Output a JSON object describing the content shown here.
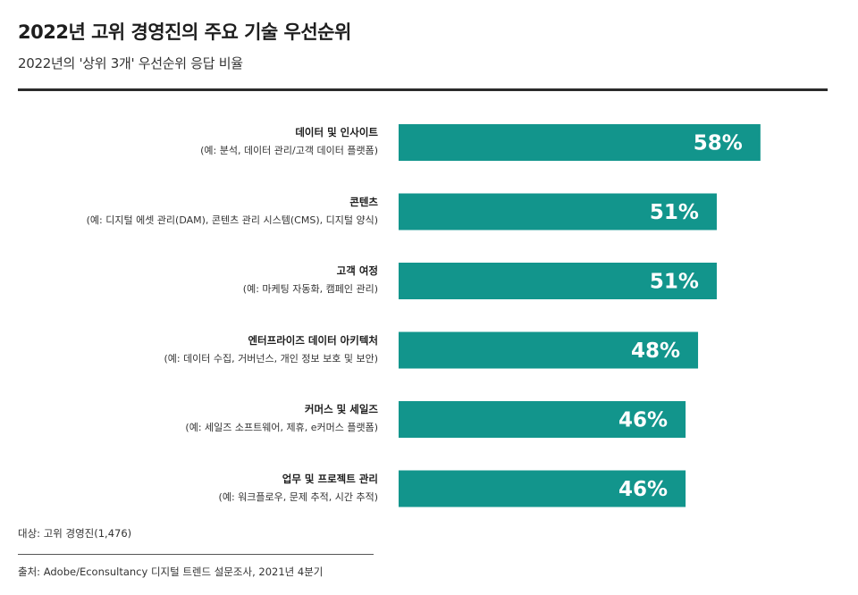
{
  "header": {
    "title": "2022년 고위 경영진의 주요 기술 우선순위",
    "subtitle": "2022년의 '상위 3개' 우선순위 응답 비율"
  },
  "footer": {
    "note": "대상: 고위 경영진(1,476)",
    "source": "출처: Adobe/Econsultancy 디지털 트렌드 설문조사, 2021년 4분기"
  },
  "colors": {
    "bar": "#12958c",
    "bar_label": "#ffffff"
  },
  "chart_data": {
    "type": "bar",
    "orientation": "horizontal",
    "title": "2022년 고위 경영진의 주요 기술 우선순위",
    "subtitle": "2022년의 '상위 3개' 우선순위 응답 비율",
    "unit": "%",
    "xlim": [
      0,
      70
    ],
    "grid": false,
    "categories": [
      {
        "label": "데이터 및 인사이트",
        "detail": "(예: 분석, 데이터 관리/고객 데이터 플랫폼)",
        "value": 58,
        "value_label": "58%"
      },
      {
        "label": "콘텐츠",
        "detail": "(예: 디지털 에셋 관리(DAM), 콘텐츠 관리 시스템(CMS), 디지털 양식)",
        "value": 51,
        "value_label": "51%"
      },
      {
        "label": "고객 여정",
        "detail": "(예: 마케팅 자동화, 캠페인 관리)",
        "value": 51,
        "value_label": "51%"
      },
      {
        "label": "엔터프라이즈 데이터 아키텍처",
        "detail": "(예: 데이터 수집, 거버넌스, 개인 정보 보호 및 보안)",
        "value": 48,
        "value_label": "48%"
      },
      {
        "label": "커머스 및 세일즈",
        "detail": "(예: 세일즈 소프트웨어, 제휴, e커머스 플랫폼)",
        "value": 46,
        "value_label": "46%"
      },
      {
        "label": "업무 및 프로젝트 관리",
        "detail": "(예: 워크플로우, 문제 추적, 시간 추적)",
        "value": 46,
        "value_label": "46%"
      }
    ]
  }
}
